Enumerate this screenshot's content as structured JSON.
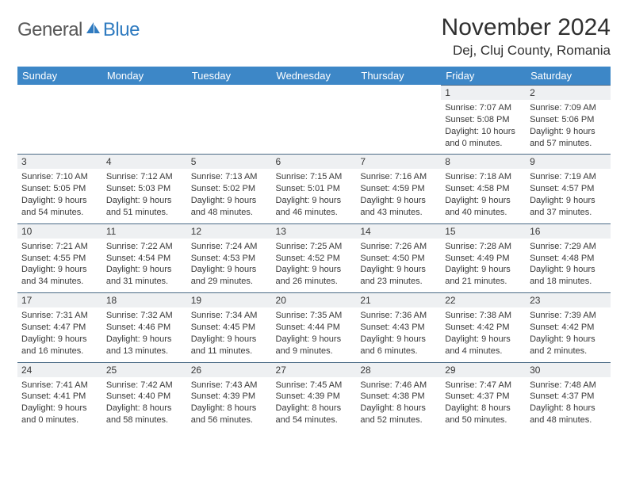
{
  "logo": {
    "text1": "General",
    "text2": "Blue"
  },
  "title": "November 2024",
  "location": "Dej, Cluj County, Romania",
  "colors": {
    "header_bg": "#3d87c7",
    "header_text": "#ffffff",
    "daynum_bg": "#eef0f2",
    "daynum_border": "#4a6a86",
    "body_text": "#383838",
    "logo_gray": "#585858",
    "logo_blue": "#2f7bc0",
    "page_bg": "#ffffff"
  },
  "day_headers": [
    "Sunday",
    "Monday",
    "Tuesday",
    "Wednesday",
    "Thursday",
    "Friday",
    "Saturday"
  ],
  "weeks": [
    [
      null,
      null,
      null,
      null,
      null,
      {
        "n": "1",
        "sunrise": "Sunrise: 7:07 AM",
        "sunset": "Sunset: 5:08 PM",
        "day1": "Daylight: 10 hours",
        "day2": "and 0 minutes."
      },
      {
        "n": "2",
        "sunrise": "Sunrise: 7:09 AM",
        "sunset": "Sunset: 5:06 PM",
        "day1": "Daylight: 9 hours",
        "day2": "and 57 minutes."
      }
    ],
    [
      {
        "n": "3",
        "sunrise": "Sunrise: 7:10 AM",
        "sunset": "Sunset: 5:05 PM",
        "day1": "Daylight: 9 hours",
        "day2": "and 54 minutes."
      },
      {
        "n": "4",
        "sunrise": "Sunrise: 7:12 AM",
        "sunset": "Sunset: 5:03 PM",
        "day1": "Daylight: 9 hours",
        "day2": "and 51 minutes."
      },
      {
        "n": "5",
        "sunrise": "Sunrise: 7:13 AM",
        "sunset": "Sunset: 5:02 PM",
        "day1": "Daylight: 9 hours",
        "day2": "and 48 minutes."
      },
      {
        "n": "6",
        "sunrise": "Sunrise: 7:15 AM",
        "sunset": "Sunset: 5:01 PM",
        "day1": "Daylight: 9 hours",
        "day2": "and 46 minutes."
      },
      {
        "n": "7",
        "sunrise": "Sunrise: 7:16 AM",
        "sunset": "Sunset: 4:59 PM",
        "day1": "Daylight: 9 hours",
        "day2": "and 43 minutes."
      },
      {
        "n": "8",
        "sunrise": "Sunrise: 7:18 AM",
        "sunset": "Sunset: 4:58 PM",
        "day1": "Daylight: 9 hours",
        "day2": "and 40 minutes."
      },
      {
        "n": "9",
        "sunrise": "Sunrise: 7:19 AM",
        "sunset": "Sunset: 4:57 PM",
        "day1": "Daylight: 9 hours",
        "day2": "and 37 minutes."
      }
    ],
    [
      {
        "n": "10",
        "sunrise": "Sunrise: 7:21 AM",
        "sunset": "Sunset: 4:55 PM",
        "day1": "Daylight: 9 hours",
        "day2": "and 34 minutes."
      },
      {
        "n": "11",
        "sunrise": "Sunrise: 7:22 AM",
        "sunset": "Sunset: 4:54 PM",
        "day1": "Daylight: 9 hours",
        "day2": "and 31 minutes."
      },
      {
        "n": "12",
        "sunrise": "Sunrise: 7:24 AM",
        "sunset": "Sunset: 4:53 PM",
        "day1": "Daylight: 9 hours",
        "day2": "and 29 minutes."
      },
      {
        "n": "13",
        "sunrise": "Sunrise: 7:25 AM",
        "sunset": "Sunset: 4:52 PM",
        "day1": "Daylight: 9 hours",
        "day2": "and 26 minutes."
      },
      {
        "n": "14",
        "sunrise": "Sunrise: 7:26 AM",
        "sunset": "Sunset: 4:50 PM",
        "day1": "Daylight: 9 hours",
        "day2": "and 23 minutes."
      },
      {
        "n": "15",
        "sunrise": "Sunrise: 7:28 AM",
        "sunset": "Sunset: 4:49 PM",
        "day1": "Daylight: 9 hours",
        "day2": "and 21 minutes."
      },
      {
        "n": "16",
        "sunrise": "Sunrise: 7:29 AM",
        "sunset": "Sunset: 4:48 PM",
        "day1": "Daylight: 9 hours",
        "day2": "and 18 minutes."
      }
    ],
    [
      {
        "n": "17",
        "sunrise": "Sunrise: 7:31 AM",
        "sunset": "Sunset: 4:47 PM",
        "day1": "Daylight: 9 hours",
        "day2": "and 16 minutes."
      },
      {
        "n": "18",
        "sunrise": "Sunrise: 7:32 AM",
        "sunset": "Sunset: 4:46 PM",
        "day1": "Daylight: 9 hours",
        "day2": "and 13 minutes."
      },
      {
        "n": "19",
        "sunrise": "Sunrise: 7:34 AM",
        "sunset": "Sunset: 4:45 PM",
        "day1": "Daylight: 9 hours",
        "day2": "and 11 minutes."
      },
      {
        "n": "20",
        "sunrise": "Sunrise: 7:35 AM",
        "sunset": "Sunset: 4:44 PM",
        "day1": "Daylight: 9 hours",
        "day2": "and 9 minutes."
      },
      {
        "n": "21",
        "sunrise": "Sunrise: 7:36 AM",
        "sunset": "Sunset: 4:43 PM",
        "day1": "Daylight: 9 hours",
        "day2": "and 6 minutes."
      },
      {
        "n": "22",
        "sunrise": "Sunrise: 7:38 AM",
        "sunset": "Sunset: 4:42 PM",
        "day1": "Daylight: 9 hours",
        "day2": "and 4 minutes."
      },
      {
        "n": "23",
        "sunrise": "Sunrise: 7:39 AM",
        "sunset": "Sunset: 4:42 PM",
        "day1": "Daylight: 9 hours",
        "day2": "and 2 minutes."
      }
    ],
    [
      {
        "n": "24",
        "sunrise": "Sunrise: 7:41 AM",
        "sunset": "Sunset: 4:41 PM",
        "day1": "Daylight: 9 hours",
        "day2": "and 0 minutes."
      },
      {
        "n": "25",
        "sunrise": "Sunrise: 7:42 AM",
        "sunset": "Sunset: 4:40 PM",
        "day1": "Daylight: 8 hours",
        "day2": "and 58 minutes."
      },
      {
        "n": "26",
        "sunrise": "Sunrise: 7:43 AM",
        "sunset": "Sunset: 4:39 PM",
        "day1": "Daylight: 8 hours",
        "day2": "and 56 minutes."
      },
      {
        "n": "27",
        "sunrise": "Sunrise: 7:45 AM",
        "sunset": "Sunset: 4:39 PM",
        "day1": "Daylight: 8 hours",
        "day2": "and 54 minutes."
      },
      {
        "n": "28",
        "sunrise": "Sunrise: 7:46 AM",
        "sunset": "Sunset: 4:38 PM",
        "day1": "Daylight: 8 hours",
        "day2": "and 52 minutes."
      },
      {
        "n": "29",
        "sunrise": "Sunrise: 7:47 AM",
        "sunset": "Sunset: 4:37 PM",
        "day1": "Daylight: 8 hours",
        "day2": "and 50 minutes."
      },
      {
        "n": "30",
        "sunrise": "Sunrise: 7:48 AM",
        "sunset": "Sunset: 4:37 PM",
        "day1": "Daylight: 8 hours",
        "day2": "and 48 minutes."
      }
    ]
  ]
}
